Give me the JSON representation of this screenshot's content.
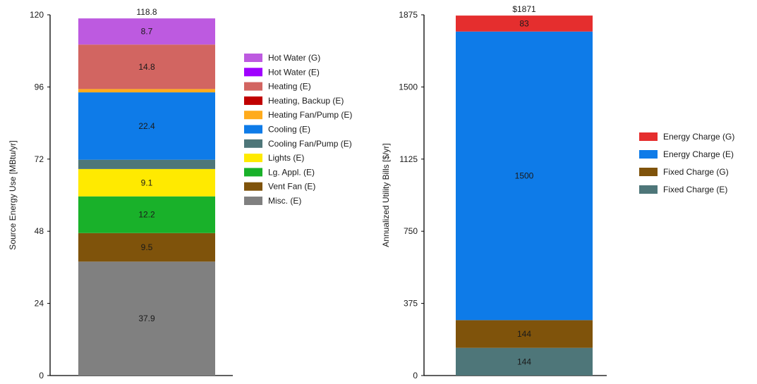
{
  "chart_data": [
    {
      "type": "bar",
      "stacked": true,
      "title": "",
      "xlabel": "",
      "ylabel": "Source Energy Use [MBtu/yr]",
      "ylim": [
        0,
        120
      ],
      "yticks": [
        0,
        24,
        48,
        72,
        96,
        120
      ],
      "categories": [
        ""
      ],
      "total_label": "118.8",
      "legend_position": "right",
      "series": [
        {
          "name": "Misc. (E)",
          "values": [
            37.9
          ],
          "color": "#808080",
          "label": "37.9"
        },
        {
          "name": "Vent Fan (E)",
          "values": [
            9.5
          ],
          "color": "#7f530b",
          "label": "9.5"
        },
        {
          "name": "Lg. Appl. (E)",
          "values": [
            12.2
          ],
          "color": "#19b12a",
          "label": "12.2"
        },
        {
          "name": "Lights (E)",
          "values": [
            9.1
          ],
          "color": "#ffea00",
          "label": "9.1"
        },
        {
          "name": "Cooling Fan/Pump (E)",
          "values": [
            3.1
          ],
          "color": "#4e7679",
          "label": ""
        },
        {
          "name": "Cooling (E)",
          "values": [
            22.4
          ],
          "color": "#0e7be8",
          "label": "22.4"
        },
        {
          "name": "Heating Fan/Pump (E)",
          "values": [
            1.1
          ],
          "color": "#ffab1c",
          "label": ""
        },
        {
          "name": "Heating, Backup (E)",
          "values": [
            0
          ],
          "color": "#c00000",
          "label": ""
        },
        {
          "name": "Heating (E)",
          "values": [
            14.8
          ],
          "color": "#d26561",
          "label": "14.8"
        },
        {
          "name": "Hot Water (E)",
          "values": [
            0
          ],
          "color": "#a000ff",
          "label": ""
        },
        {
          "name": "Hot Water (G)",
          "values": [
            8.7
          ],
          "color": "#bd5ae0",
          "label": "8.7"
        }
      ],
      "legend_order": [
        "Hot Water (G)",
        "Hot Water (E)",
        "Heating (E)",
        "Heating, Backup (E)",
        "Heating Fan/Pump (E)",
        "Cooling (E)",
        "Cooling Fan/Pump (E)",
        "Lights (E)",
        "Lg. Appl. (E)",
        "Vent Fan (E)",
        "Misc. (E)"
      ]
    },
    {
      "type": "bar",
      "stacked": true,
      "title": "",
      "xlabel": "",
      "ylabel": "Annualized Utility Bills [$/yr]",
      "ylim": [
        0,
        1875
      ],
      "yticks": [
        0,
        375,
        750,
        1125,
        1500,
        1875
      ],
      "categories": [
        ""
      ],
      "total_label": "$1871",
      "legend_position": "right",
      "series": [
        {
          "name": "Fixed Charge (E)",
          "values": [
            144
          ],
          "color": "#4e7679",
          "label": "144"
        },
        {
          "name": "Fixed Charge (G)",
          "values": [
            144
          ],
          "color": "#7f530b",
          "label": "144"
        },
        {
          "name": "Energy Charge (E)",
          "values": [
            1500
          ],
          "color": "#0e7be8",
          "label": "1500"
        },
        {
          "name": "Energy Charge (G)",
          "values": [
            83
          ],
          "color": "#e52e2e",
          "label": "83"
        }
      ],
      "legend_order": [
        "Energy Charge (G)",
        "Energy Charge (E)",
        "Fixed Charge (G)",
        "Fixed Charge (E)"
      ]
    }
  ]
}
